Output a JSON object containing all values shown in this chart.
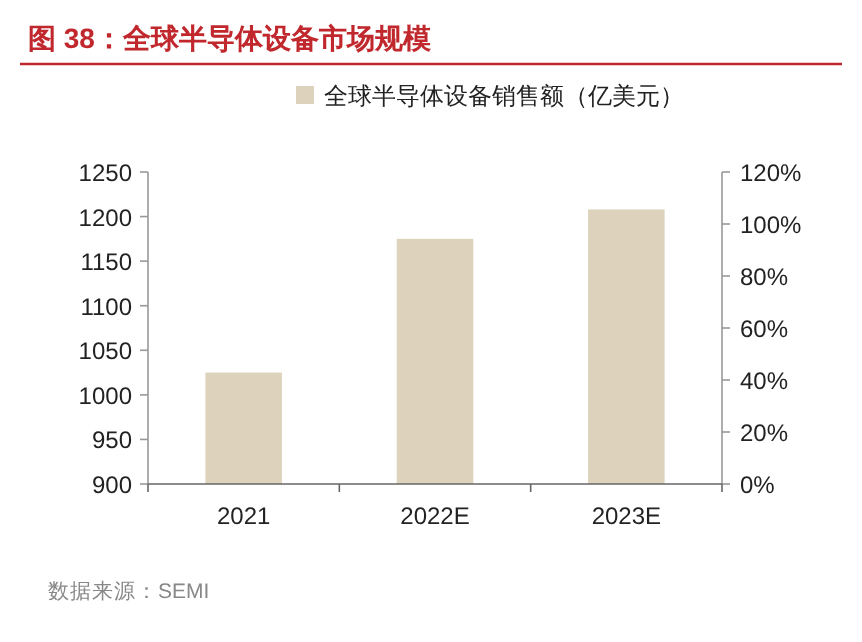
{
  "chart_data": {
    "type": "bar",
    "title": "图 38：全球半导体设备市场规模",
    "categories": [
      "2021",
      "2022E",
      "2023E"
    ],
    "series": [
      {
        "name": "全球半导体设备销售额（亿美元）",
        "color": "#ddd3bc",
        "values": [
          1025,
          1175,
          1208
        ]
      }
    ],
    "ylim": [
      900,
      1250
    ],
    "yticks": [
      900,
      950,
      1000,
      1050,
      1100,
      1150,
      1200,
      1250
    ],
    "y2lim": [
      0,
      120
    ],
    "y2ticks": [
      {
        "value": 0,
        "label": "0%"
      },
      {
        "value": 20,
        "label": "20%"
      },
      {
        "value": 40,
        "label": "40%"
      },
      {
        "value": 60,
        "label": "60%"
      },
      {
        "value": 80,
        "label": "80%"
      },
      {
        "value": 100,
        "label": "100%"
      },
      {
        "value": 120,
        "label": "120%"
      }
    ],
    "legend": "top",
    "grid": false,
    "annotations": [
      "数据来源：SEMI"
    ]
  }
}
